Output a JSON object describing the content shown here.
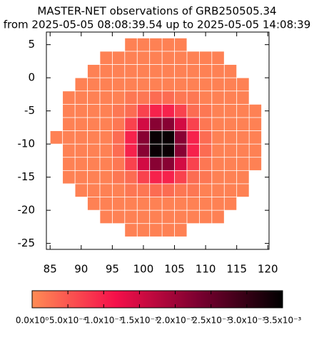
{
  "chart_data": {
    "type": "heatmap",
    "title": "MASTER-NET observations of GRB250505.34",
    "subtitle": "from 2025-05-05 08:08:39.54 up to 2025-05-05 14:08:39",
    "x": [
      86,
      88,
      90,
      92,
      94,
      96,
      98,
      100,
      102,
      104,
      106,
      108,
      110,
      112,
      114,
      116,
      118
    ],
    "y": [
      5,
      3,
      1,
      -1,
      -3,
      -5,
      -7,
      -9,
      -11,
      -13,
      -15,
      -17,
      -19,
      -21,
      -23
    ],
    "z": [
      [
        null,
        null,
        null,
        null,
        null,
        null,
        0.0001,
        0.0001,
        0.0001,
        0.0001,
        0.0001,
        null,
        null,
        null,
        null,
        null,
        null
      ],
      [
        null,
        null,
        null,
        null,
        0.0001,
        0.0001,
        0.0001,
        0.0001,
        0.0001,
        0.0001,
        0.0001,
        0.0001,
        0.0001,
        0.0001,
        null,
        null,
        null
      ],
      [
        null,
        null,
        null,
        0.0001,
        0.0001,
        0.0001,
        0.0001,
        0.0001,
        0.0001,
        0.0001,
        0.0001,
        0.0001,
        0.0001,
        0.0001,
        0.0001,
        null,
        null
      ],
      [
        null,
        null,
        0.0001,
        0.0001,
        0.0001,
        0.0001,
        0.0001,
        0.0001,
        0.0001,
        0.0001,
        0.0001,
        0.0001,
        0.0001,
        0.0001,
        0.0001,
        0.0001,
        null
      ],
      [
        null,
        0.0001,
        0.0001,
        0.0001,
        0.0001,
        0.0001,
        0.0002,
        0.0002,
        0.0003,
        0.0003,
        0.0002,
        0.0002,
        0.0001,
        0.0001,
        0.0001,
        0.0001,
        null
      ],
      [
        null,
        0.0001,
        0.0001,
        0.0001,
        0.0001,
        0.0002,
        0.0003,
        0.0007,
        0.001,
        0.001,
        0.0007,
        0.0003,
        0.0002,
        0.0001,
        0.0001,
        0.0001,
        0.0001
      ],
      [
        null,
        0.0001,
        0.0001,
        0.0001,
        0.0001,
        0.0002,
        0.0007,
        0.0015,
        0.0022,
        0.0022,
        0.0015,
        0.0007,
        0.0002,
        0.0001,
        0.0001,
        0.0001,
        0.0001
      ],
      [
        0.0001,
        0.0001,
        0.0001,
        0.0001,
        0.0001,
        0.0003,
        0.001,
        0.0022,
        0.0034,
        0.0034,
        0.0022,
        0.001,
        0.0003,
        0.0001,
        0.0001,
        0.0001,
        0.0001
      ],
      [
        null,
        0.0001,
        0.0001,
        0.0001,
        0.0001,
        0.0003,
        0.001,
        0.0022,
        0.0034,
        0.0034,
        0.0022,
        0.001,
        0.0003,
        0.0001,
        0.0001,
        0.0001,
        0.0001
      ],
      [
        null,
        0.0001,
        0.0001,
        0.0001,
        0.0001,
        0.0002,
        0.0007,
        0.0015,
        0.0022,
        0.0022,
        0.0015,
        0.0007,
        0.0002,
        0.0001,
        0.0001,
        0.0001,
        0.0001
      ],
      [
        null,
        0.0001,
        0.0001,
        0.0001,
        0.0001,
        0.0002,
        0.0003,
        0.0007,
        0.001,
        0.001,
        0.0007,
        0.0003,
        0.0002,
        0.0001,
        0.0001,
        0.0001,
        null
      ],
      [
        null,
        null,
        0.0001,
        0.0001,
        0.0001,
        0.0001,
        0.0002,
        0.0002,
        0.0003,
        0.0003,
        0.0002,
        0.0002,
        0.0001,
        0.0001,
        0.0001,
        0.0001,
        null
      ],
      [
        null,
        null,
        null,
        0.0001,
        0.0001,
        0.0001,
        0.0001,
        0.0001,
        0.0001,
        0.0001,
        0.0001,
        0.0001,
        0.0001,
        0.0001,
        0.0001,
        null,
        null
      ],
      [
        null,
        null,
        null,
        null,
        0.0001,
        0.0001,
        0.0001,
        0.0001,
        0.0001,
        0.0001,
        0.0001,
        0.0001,
        0.0001,
        0.0001,
        null,
        null,
        null
      ],
      [
        null,
        null,
        null,
        null,
        null,
        null,
        0.0001,
        0.0001,
        0.0001,
        0.0001,
        0.0001,
        null,
        null,
        null,
        null,
        null,
        null
      ]
    ],
    "xlim": [
      84.4,
      120.2
    ],
    "xticks": [
      85,
      90,
      95,
      100,
      105,
      110,
      115,
      120
    ],
    "ylim": [
      -25.9,
      6.9
    ],
    "yticks": [
      5,
      0,
      -5,
      -10,
      -15,
      -20,
      -25
    ],
    "zlim": [
      0,
      0.0035
    ],
    "zticks": [
      {
        "value": 0,
        "label": "0.0x10⁰"
      },
      {
        "value": 0.0005,
        "label": "5.0x10⁻⁴"
      },
      {
        "value": 0.001,
        "label": "1.0x10⁻³"
      },
      {
        "value": 0.0015,
        "label": "1.5x10⁻³"
      },
      {
        "value": 0.002,
        "label": "2.0x10⁻³"
      },
      {
        "value": 0.0025,
        "label": "2.5x10⁻³"
      },
      {
        "value": 0.003,
        "label": "3.0x10⁻³"
      },
      {
        "value": 0.0035,
        "label": "3.5x10⁻³"
      }
    ],
    "colormap": [
      "#ff8c55",
      "#f5104a",
      "#7a0030",
      "#000000"
    ]
  }
}
